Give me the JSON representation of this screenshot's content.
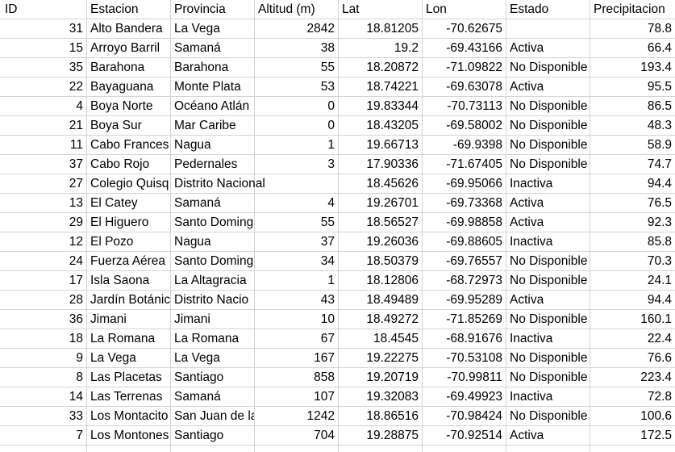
{
  "columns": [
    "ID",
    "Estacion",
    "Provincia",
    "Altitud (m)",
    "Lat",
    "Lon",
    "Estado",
    "Precipitacion"
  ],
  "rows": [
    [
      "31",
      "Alto Bandera",
      "La Vega",
      "2842",
      "18.81205",
      "-70.62675",
      "",
      "78.8"
    ],
    [
      "15",
      "Arroyo Barril",
      "Samaná",
      "38",
      "19.2",
      "-69.43166",
      "Activa",
      "66.4"
    ],
    [
      "35",
      "Barahona",
      "Barahona",
      "55",
      "18.20872",
      "-71.09822",
      "No Disponible",
      "193.4"
    ],
    [
      "22",
      "Bayaguana",
      "Monte Plata",
      "53",
      "18.74221",
      "-69.63078",
      "Activa",
      "95.5"
    ],
    [
      "4",
      "Boya Norte",
      "Océano Atlán",
      "0",
      "19.83344",
      "-70.73113",
      "No Disponible",
      "86.5"
    ],
    [
      "21",
      "Boya Sur",
      "Mar Caribe",
      "0",
      "18.43205",
      "-69.58002",
      "No Disponible",
      "48.3"
    ],
    [
      "11",
      "Cabo Frances",
      "Nagua",
      "1",
      "19.66713",
      "-69.9398",
      "No Disponible",
      "58.9"
    ],
    [
      "37",
      "Cabo Rojo",
      "Pedernales",
      "3",
      "17.90336",
      "-71.67405",
      "No Disponible",
      "74.7"
    ],
    [
      "27",
      "Colegio Quisq",
      "Distrito Nacional",
      "",
      "18.45626",
      "-69.95066",
      "Inactiva",
      "94.4"
    ],
    [
      "13",
      "El Catey",
      "Samaná",
      "4",
      "19.26701",
      "-69.73368",
      "Activa",
      "76.5"
    ],
    [
      "29",
      "El Higuero",
      "Santo Doming",
      "55",
      "18.56527",
      "-69.98858",
      "Activa",
      "92.3"
    ],
    [
      "12",
      "El Pozo",
      "Nagua",
      "37",
      "19.26036",
      "-69.88605",
      "Inactiva",
      "85.8"
    ],
    [
      "24",
      "Fuerza Aérea",
      "Santo Doming",
      "34",
      "18.50379",
      "-69.76557",
      "No Disponible",
      "70.3"
    ],
    [
      "17",
      "Isla Saona",
      "La Altagracia",
      "1",
      "18.12806",
      "-68.72973",
      "No Disponible",
      "24.1"
    ],
    [
      "28",
      "Jardín Botánic",
      "Distrito Nacio",
      "43",
      "18.49489",
      "-69.95289",
      "Activa",
      "94.4"
    ],
    [
      "36",
      "Jimani",
      "Jimani",
      "10",
      "18.49272",
      "-71.85269",
      "No Disponible",
      "160.1"
    ],
    [
      "18",
      "La Romana",
      "La Romana",
      "67",
      "18.4545",
      "-68.91676",
      "Inactiva",
      "22.4"
    ],
    [
      "9",
      "La Vega",
      "La Vega",
      "167",
      "19.22275",
      "-70.53108",
      "No Disponible",
      "76.6"
    ],
    [
      "8",
      "Las Placetas",
      "Santiago",
      "858",
      "19.20719",
      "-70.99811",
      "No Disponible",
      "223.4"
    ],
    [
      "14",
      "Las Terrenas",
      "Samaná",
      "107",
      "19.32083",
      "-69.49923",
      "Inactiva",
      "72.8"
    ],
    [
      "33",
      "Los Montacito",
      "San Juan de la",
      "1242",
      "18.86516",
      "-70.98424",
      "No Disponible",
      "100.6"
    ],
    [
      "7",
      "Los Montones",
      "Santiago",
      "704",
      "19.28875",
      "-70.92514",
      "Activa",
      "172.5"
    ],
    [
      "",
      "",
      "",
      "",
      "",
      "",
      "",
      ""
    ]
  ]
}
